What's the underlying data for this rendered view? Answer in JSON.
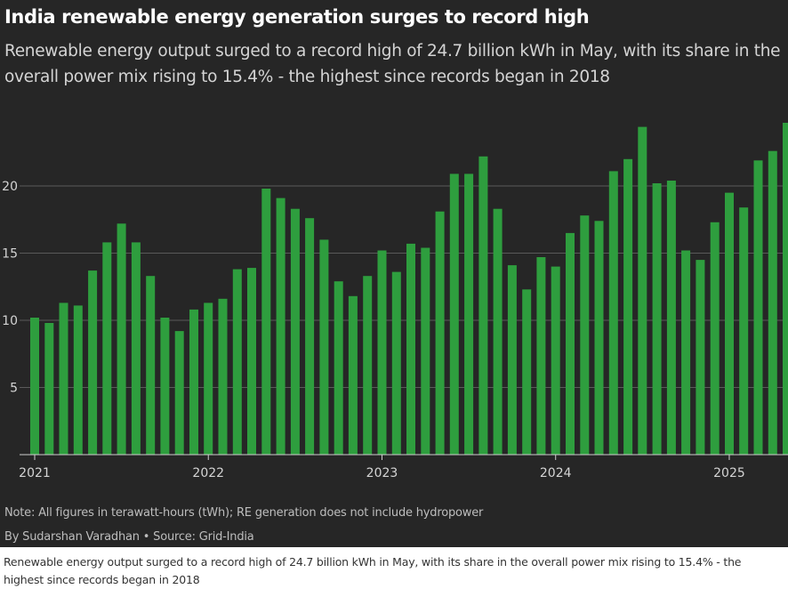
{
  "chart": {
    "title": "India renewable energy generation surges to record high",
    "subtitle": "Renewable energy output surged to a record high of 24.7 billion kWh in May, with its share in the overall power mix rising to 15.4% - the highest since records began in 2018",
    "note": "Note: All figures in terawatt-hours (tWh); RE generation does not include hydropower",
    "credit": "By Sudarshan Varadhan • Source: Grid-India"
  },
  "caption": "Renewable energy output surged to a record high of 24.7 billion kWh in May, with its share in the overall power mix rising to 15.4% - the highest since records began in 2018",
  "colors": {
    "background": "#262626",
    "bar": "#2e9e3e",
    "grid": "#5a5a5a",
    "text": "#d4d4d4"
  },
  "chart_data": {
    "type": "bar",
    "title": "India renewable energy generation surges to record high",
    "xlabel": "",
    "ylabel": "",
    "ylim": [
      0,
      25
    ],
    "yticks": [
      5,
      10,
      15,
      20
    ],
    "grid": true,
    "xtick_labels": [
      "2021",
      "2022",
      "2023",
      "2024",
      "2025"
    ],
    "categories": [
      "2021-01",
      "2021-02",
      "2021-03",
      "2021-04",
      "2021-05",
      "2021-06",
      "2021-07",
      "2021-08",
      "2021-09",
      "2021-10",
      "2021-11",
      "2021-12",
      "2022-01",
      "2022-02",
      "2022-03",
      "2022-04",
      "2022-05",
      "2022-06",
      "2022-07",
      "2022-08",
      "2022-09",
      "2022-10",
      "2022-11",
      "2022-12",
      "2023-01",
      "2023-02",
      "2023-03",
      "2023-04",
      "2023-05",
      "2023-06",
      "2023-07",
      "2023-08",
      "2023-09",
      "2023-10",
      "2023-11",
      "2023-12",
      "2024-01",
      "2024-02",
      "2024-03",
      "2024-04",
      "2024-05",
      "2024-06",
      "2024-07",
      "2024-08",
      "2024-09",
      "2024-10",
      "2024-11",
      "2024-12",
      "2025-01",
      "2025-02",
      "2025-03",
      "2025-04",
      "2025-05"
    ],
    "values": [
      10.2,
      9.8,
      11.3,
      11.1,
      13.7,
      15.8,
      17.2,
      15.8,
      13.3,
      10.2,
      9.2,
      10.8,
      11.3,
      11.6,
      13.8,
      13.9,
      19.8,
      19.1,
      18.3,
      17.6,
      16.0,
      12.9,
      11.8,
      13.3,
      15.2,
      13.6,
      15.7,
      15.4,
      18.1,
      20.9,
      20.9,
      22.2,
      18.3,
      14.1,
      12.3,
      14.7,
      14.0,
      16.5,
      17.8,
      17.4,
      21.1,
      22.0,
      24.4,
      20.2,
      20.4,
      15.2,
      14.5,
      17.3,
      19.5,
      18.4,
      21.9,
      22.6,
      24.7
    ]
  }
}
